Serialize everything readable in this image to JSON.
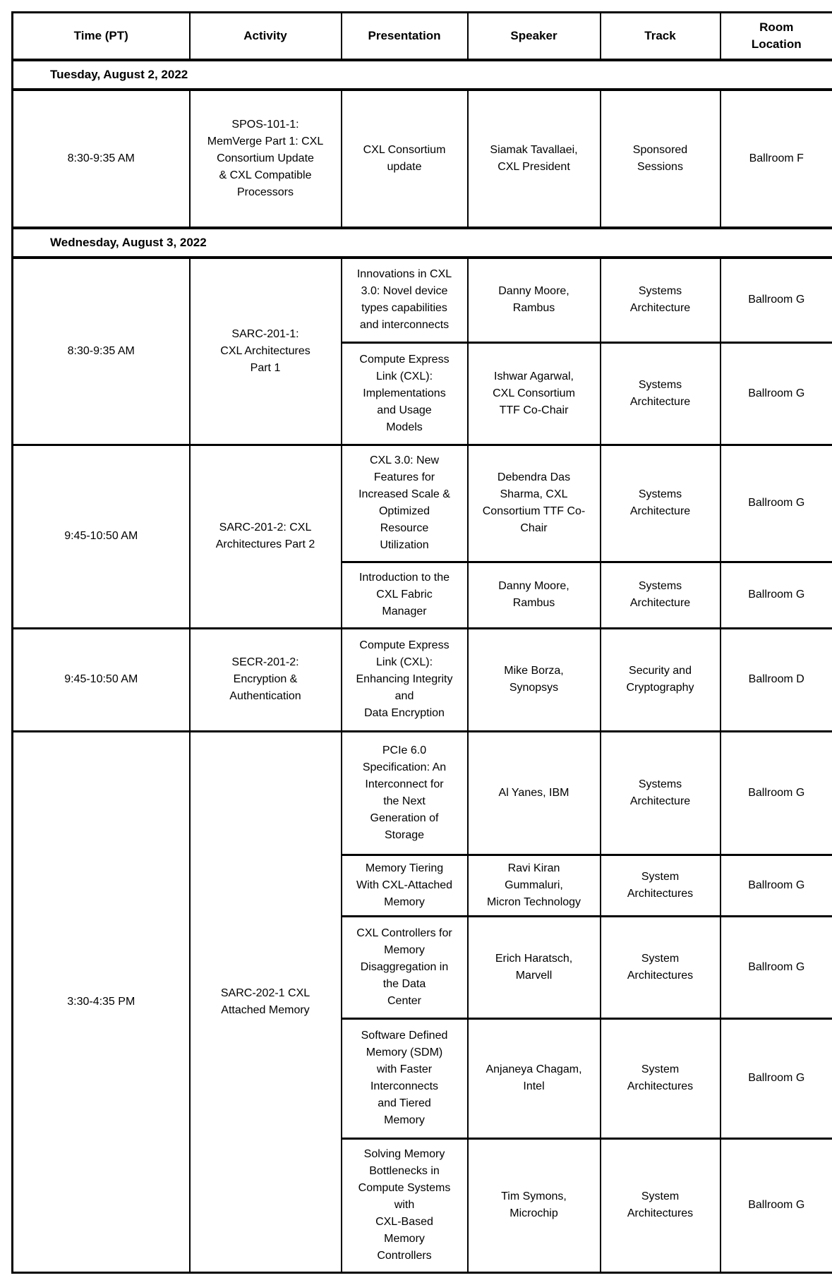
{
  "schedule": {
    "columns": [
      "Time (PT)",
      "Activity",
      "Presentation",
      "Speaker",
      "Track",
      "Room\nLocation"
    ],
    "days": [
      {
        "date": "Tuesday, August 2, 2022",
        "sessions": [
          {
            "time": "8:30-9:35 AM",
            "activity": "SPOS-101-1:\nMemVerge Part 1: CXL\nConsortium Update\n& CXL Compatible\nProcessors",
            "presentations": [
              {
                "presentation": "CXL Consortium\nupdate",
                "speaker": "Siamak Tavallaei,\nCXL President",
                "track": "Sponsored\nSessions",
                "room": "Ballroom F"
              }
            ]
          }
        ]
      },
      {
        "date": "Wednesday, August 3, 2022",
        "sessions": [
          {
            "time": "8:30-9:35 AM",
            "activity": "SARC-201-1:\nCXL Architectures\nPart 1",
            "presentations": [
              {
                "presentation": "Innovations in CXL\n3.0: Novel device\ntypes capabilities\nand interconnects",
                "speaker": "Danny Moore,\nRambus",
                "track": "Systems\nArchitecture",
                "room": "Ballroom G"
              },
              {
                "presentation": "Compute Express\nLink (CXL):\nImplementations\nand Usage\nModels",
                "speaker": "Ishwar Agarwal,\nCXL Consortium\nTTF Co-Chair",
                "track": "Systems\nArchitecture",
                "room": "Ballroom G"
              }
            ]
          },
          {
            "time": "9:45-10:50 AM",
            "activity": "SARC-201-2: CXL\nArchitectures Part 2",
            "presentations": [
              {
                "presentation": "CXL 3.0: New\nFeatures for\nIncreased Scale &\nOptimized\nResource\nUtilization",
                "speaker": "Debendra Das\nSharma, CXL\nConsortium TTF Co-\nChair",
                "track": "Systems\nArchitecture",
                "room": "Ballroom G"
              },
              {
                "presentation": "Introduction to the\nCXL Fabric\nManager",
                "speaker": "Danny Moore,\nRambus",
                "track": "Systems\nArchitecture",
                "room": "Ballroom G"
              }
            ]
          },
          {
            "time": "9:45-10:50 AM",
            "activity": "SECR-201-2:\nEncryption &\nAuthentication",
            "presentations": [
              {
                "presentation": "Compute Express\nLink (CXL):\nEnhancing Integrity\nand\nData Encryption",
                "speaker": "Mike Borza,\nSynopsys",
                "track": "Security and\nCryptography",
                "room": "Ballroom D"
              }
            ]
          },
          {
            "time": "3:30-4:35 PM",
            "activity": "SARC-202-1 CXL\nAttached Memory",
            "presentations": [
              {
                "presentation": "PCIe 6.0\nSpecification: An\nInterconnect for\nthe Next\nGeneration of\nStorage",
                "speaker": "Al Yanes, IBM",
                "track": "Systems\nArchitecture",
                "room": "Ballroom G"
              },
              {
                "presentation": "Memory Tiering\nWith CXL-Attached\nMemory",
                "speaker": "Ravi Kiran\nGummaluri,\nMicron Technology",
                "track": "System\nArchitectures",
                "room": "Ballroom G"
              },
              {
                "presentation": "CXL Controllers for\nMemory\nDisaggregation in\nthe Data\nCenter",
                "speaker": "Erich Haratsch,\nMarvell",
                "track": "System\nArchitectures",
                "room": "Ballroom G"
              },
              {
                "presentation": "Software Defined\nMemory (SDM)\nwith Faster\nInterconnects\nand Tiered\nMemory",
                "speaker": "Anjaneya Chagam,\nIntel",
                "track": "System\nArchitectures",
                "room": "Ballroom G"
              },
              {
                "presentation": "Solving Memory\nBottlenecks in\nCompute Systems\nwith\nCXL-Based\nMemory\nControllers",
                "speaker": "Tim Symons,\nMicrochip",
                "track": "System\nArchitectures",
                "room": "Ballroom G"
              }
            ]
          }
        ]
      }
    ]
  }
}
